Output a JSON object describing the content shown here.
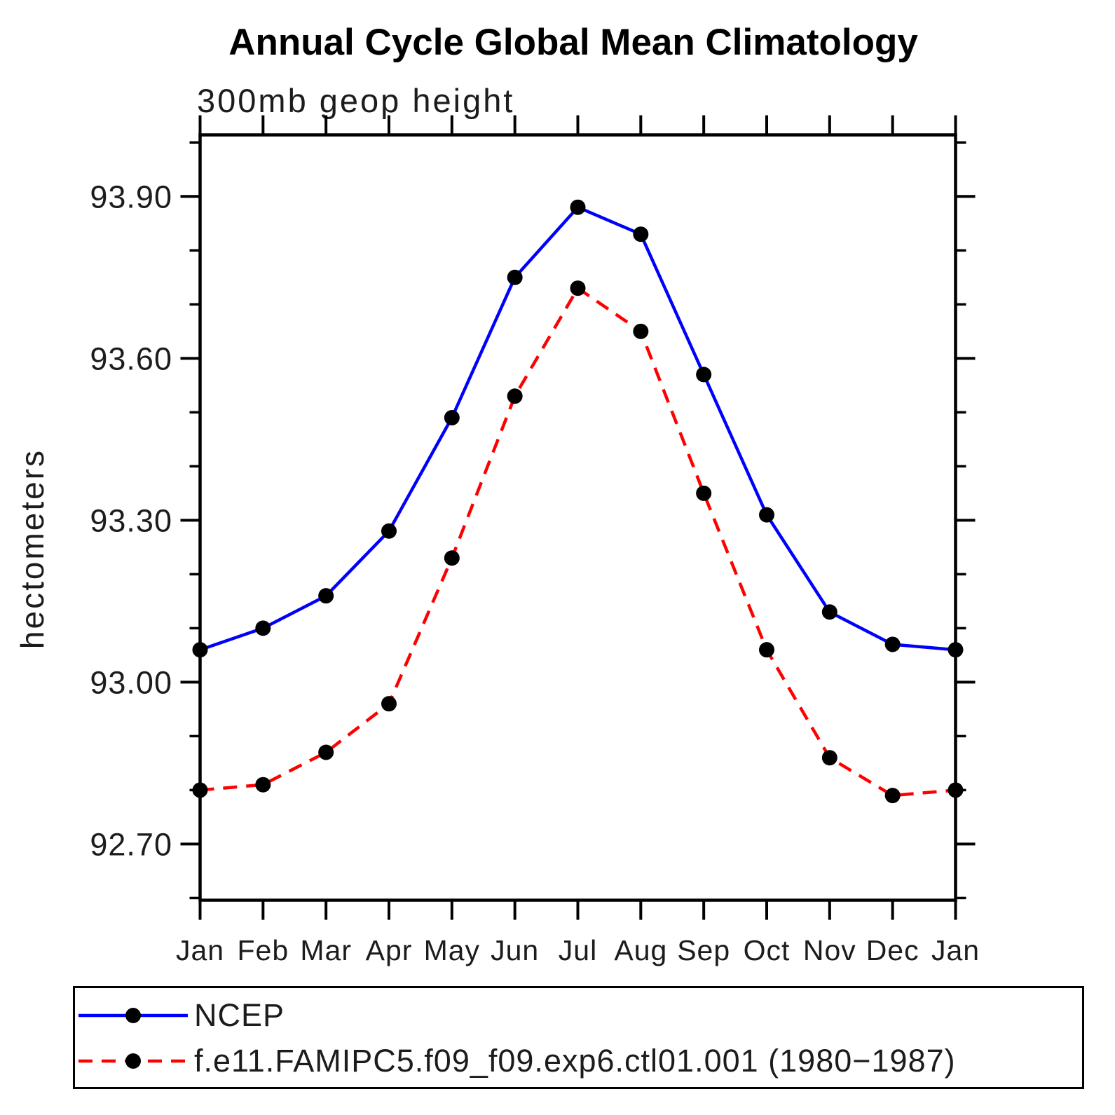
{
  "chart_data": {
    "type": "line",
    "title": "Annual Cycle Global Mean Climatology",
    "subtitle": "300mb geop height",
    "ylabel": "hectometers",
    "xlabel": "",
    "categories": [
      "Jan",
      "Feb",
      "Mar",
      "Apr",
      "May",
      "Jun",
      "Jul",
      "Aug",
      "Sep",
      "Oct",
      "Nov",
      "Dec",
      "Jan"
    ],
    "series": [
      {
        "name": "NCEP",
        "color": "#0000ff",
        "line_style": "solid",
        "marker": "circle",
        "marker_color": "#000000",
        "values": [
          93.06,
          93.1,
          93.16,
          93.28,
          93.49,
          93.75,
          93.88,
          93.83,
          93.57,
          93.31,
          93.13,
          93.07,
          93.06
        ]
      },
      {
        "name": "f.e11.FAMIPC5.f09_f09.exp6.ctl01.001 (1980−1987)",
        "color": "#ff0000",
        "line_style": "dashed",
        "marker": "circle",
        "marker_color": "#000000",
        "values": [
          92.8,
          92.81,
          92.87,
          92.96,
          93.23,
          93.53,
          93.73,
          93.65,
          93.35,
          93.06,
          92.86,
          92.79,
          92.8
        ]
      }
    ],
    "ylim": [
      92.596,
      94.014
    ],
    "yticks_major": [
      93.9,
      93.6,
      93.3,
      93.0,
      92.7
    ],
    "ytick_minor_step": 0.1,
    "ytick_label_decimals": 2,
    "grid": false,
    "legend_position": "bottom",
    "axis_color": "#000000",
    "units": "hectometers"
  }
}
